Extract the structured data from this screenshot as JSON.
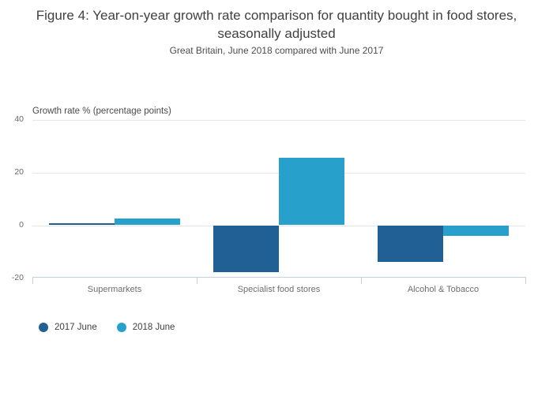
{
  "header": {
    "title": "Figure 4: Year-on-year growth rate comparison for quantity bought in food stores, seasonally adjusted",
    "subtitle": "Great Britain, June 2018 compared with June 2017"
  },
  "chart_data": {
    "type": "bar",
    "categories": [
      "Supermarkets",
      "Specialist food stores",
      "Alcohol & Tobacco"
    ],
    "series": [
      {
        "name": "2017 June",
        "color": "#206095",
        "values": [
          0.6,
          -17.7,
          -13.9
        ]
      },
      {
        "name": "2018 June",
        "color": "#27A0CC",
        "values": [
          2.6,
          25.6,
          -3.9
        ]
      }
    ],
    "title": "Figure 4: Year-on-year growth rate comparison for quantity bought in food stores, seasonally adjusted",
    "subtitle": "Great Britain, June 2018 compared with June 2017",
    "xlabel": "",
    "ylabel": "Growth rate % (percentage points)",
    "yticks": [
      40,
      20,
      0,
      -20
    ],
    "ylim": [
      -20,
      40
    ],
    "grid": true,
    "legend_position": "bottom-left",
    "colors": {
      "series_2017": "#206095",
      "series_2018": "#27A0CC",
      "gridline": "#e6e6e6",
      "axis_band": "#c3d0e2",
      "title_text": "#414141",
      "tick_text": "#696969"
    }
  }
}
